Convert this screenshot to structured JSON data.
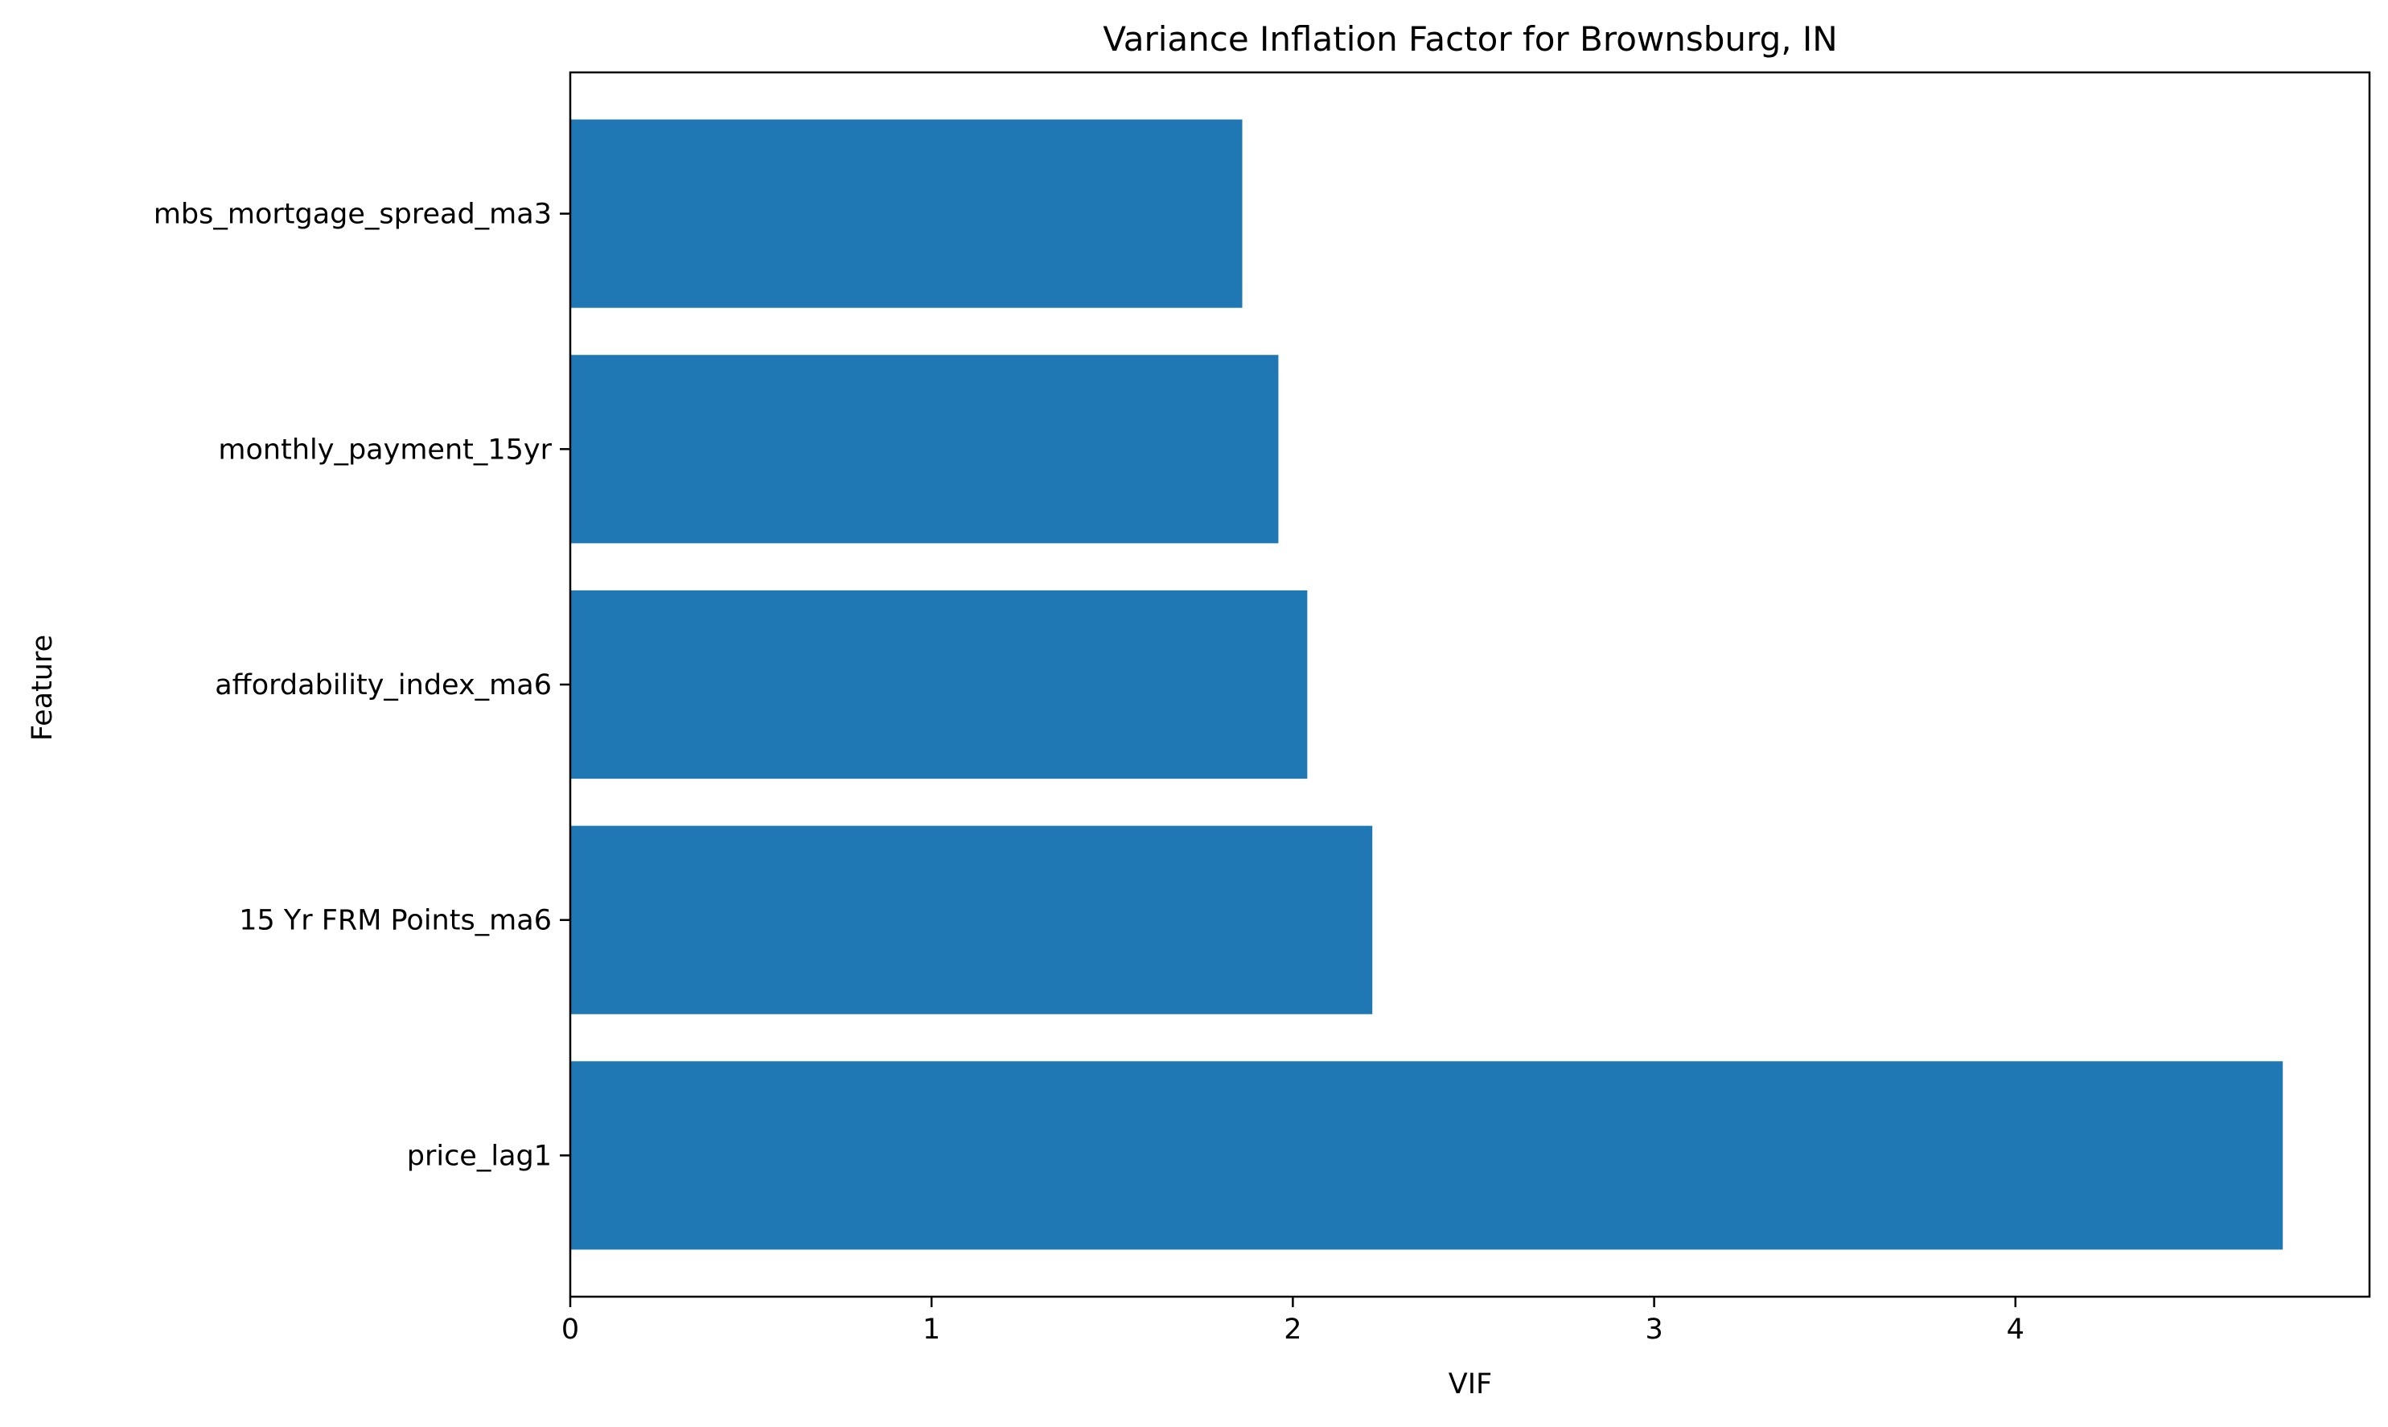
{
  "chart_data": {
    "type": "bar",
    "orientation": "horizontal",
    "title": "Variance Inflation Factor for Brownsburg, IN",
    "xlabel": "VIF",
    "ylabel": "Feature",
    "categories": [
      "price_lag1",
      "15 Yr FRM Points_ma6",
      "affordability_index_ma6",
      "monthly_payment_15yr",
      "mbs_mortgage_spread_ma3"
    ],
    "values": [
      4.74,
      2.22,
      2.04,
      1.96,
      1.86
    ],
    "xlim": [
      0,
      4.98
    ],
    "xticks": [
      0,
      1,
      2,
      3,
      4
    ],
    "bar_color": "#1f77b4",
    "grid": false,
    "legend": "none"
  }
}
